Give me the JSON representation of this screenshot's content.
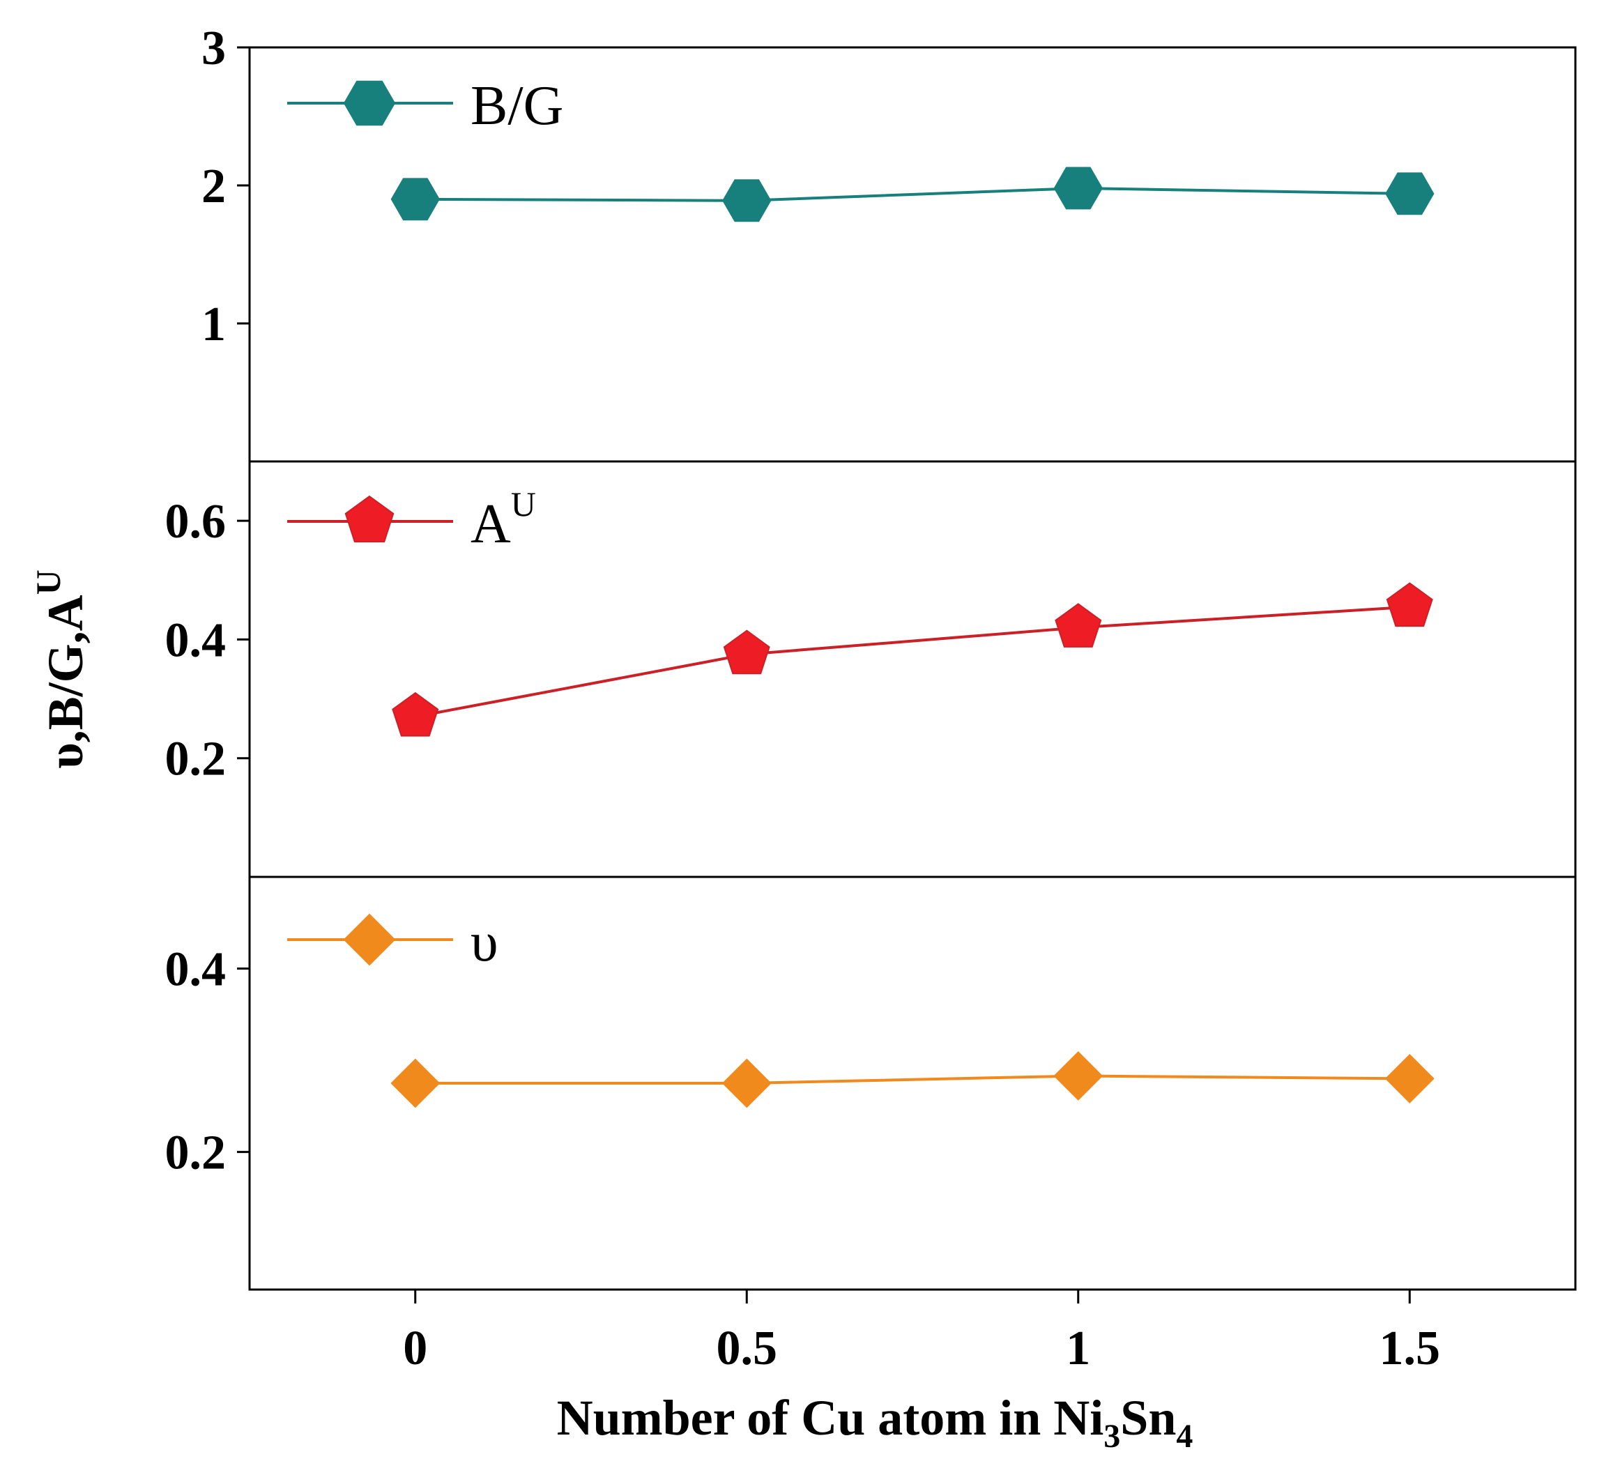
{
  "chart_data": {
    "type": "line",
    "x": [
      0,
      0.5,
      1,
      1.5
    ],
    "x_tick_labels": [
      "0",
      "0.5",
      "1",
      "1.5"
    ],
    "xlim": [
      -0.25,
      1.75
    ],
    "xlabel": {
      "main": "Number of Cu atom in Ni",
      "sub1": "3",
      "mid": "Sn",
      "sub2": "4"
    },
    "ylabel": {
      "main": "υ,B/G,A",
      "sup": "U"
    },
    "panels": [
      {
        "name": "B/G",
        "legend_label": "B/G",
        "legend_sup": "",
        "color": "#17807c",
        "marker": "hexagon",
        "ylim": [
          0,
          3
        ],
        "yticks": [
          1,
          2,
          3
        ],
        "ytick_labels": [
          "1",
          "2",
          "3"
        ],
        "values": [
          1.9,
          1.89,
          1.98,
          1.94
        ]
      },
      {
        "name": "A^U",
        "legend_label": "A",
        "legend_sup": "U",
        "color": "#cc2027",
        "marker_fill": "#ee1c24",
        "marker": "pentagon",
        "ylim": [
          0,
          0.7
        ],
        "yticks": [
          0.2,
          0.4,
          0.6
        ],
        "ytick_labels": [
          "0.2",
          "0.4",
          "0.6"
        ],
        "values": [
          0.27,
          0.375,
          0.42,
          0.455
        ]
      },
      {
        "name": "υ",
        "legend_label": "υ",
        "legend_sup": "",
        "color": "#f08a1d",
        "marker": "diamond",
        "ylim": [
          0.05,
          0.5
        ],
        "yticks": [
          0.2,
          0.4
        ],
        "ytick_labels": [
          "0.2",
          "0.4"
        ],
        "values": [
          0.275,
          0.275,
          0.283,
          0.28
        ]
      }
    ]
  }
}
